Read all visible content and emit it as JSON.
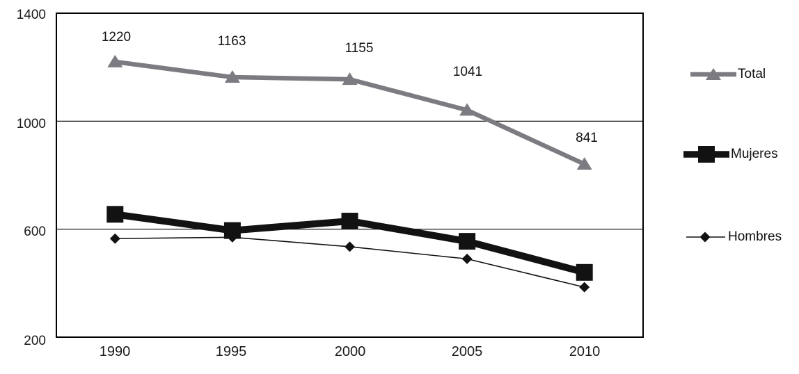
{
  "chart_data": {
    "type": "line",
    "title": "",
    "xlabel": "",
    "ylabel": "",
    "categories": [
      "1990",
      "1995",
      "2000",
      "2005",
      "2010"
    ],
    "series": [
      {
        "name": "Total",
        "values": [
          1220,
          1163,
          1155,
          1041,
          841
        ],
        "color": "#7b7b81",
        "marker": "triangle",
        "line_width": 6.5,
        "data_labels": true
      },
      {
        "name": "Mujeres",
        "values": [
          655,
          595,
          630,
          555,
          440
        ],
        "color": "#121212",
        "marker": "square",
        "line_width": 10,
        "data_labels": false
      },
      {
        "name": "Hombres",
        "values": [
          565,
          570,
          535,
          490,
          385
        ],
        "color": "#121212",
        "marker": "diamond",
        "line_width": 1.6,
        "data_labels": false
      }
    ],
    "yticks": [
      1400,
      1000,
      600,
      200
    ],
    "ylim": [
      200,
      1400
    ],
    "grid": "horizontal",
    "gridline_color": "#000000",
    "plot_border_color": "#000000",
    "background": "#ffffff",
    "legend_position": "right"
  }
}
